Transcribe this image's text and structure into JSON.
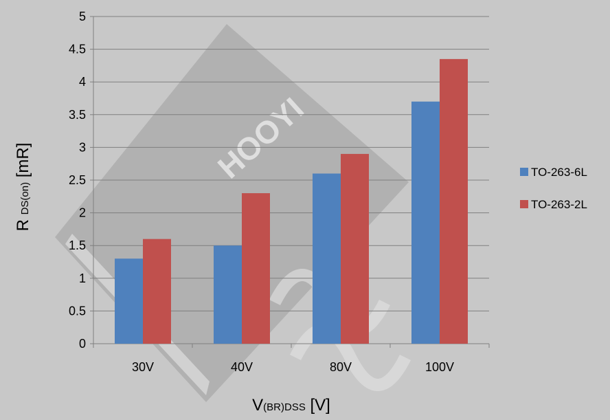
{
  "chart_data": {
    "type": "bar",
    "title": "",
    "categories": [
      "30V",
      "40V",
      "80V",
      "100V"
    ],
    "series": [
      {
        "name": "TO-263-6L",
        "color": "#4f81bd",
        "values": [
          1.3,
          1.5,
          2.6,
          3.7
        ]
      },
      {
        "name": "TO-263-2L",
        "color": "#c0504d",
        "values": [
          1.6,
          2.3,
          2.9,
          4.35
        ]
      }
    ],
    "ylim": [
      0,
      5
    ],
    "yticks": [
      "0",
      "0.5",
      "1",
      "1.5",
      "2",
      "2.5",
      "3",
      "3.5",
      "4",
      "4.5",
      "5"
    ],
    "xlabel": {
      "main": "V",
      "sub": "(BR)DSS",
      "unit": " [V]"
    },
    "ylabel": {
      "main": "R ",
      "sub": "DS(on)",
      "unit": " [mR]"
    },
    "grid": "horizontal",
    "legend_position": "right",
    "watermark_text": "HOOYI"
  }
}
